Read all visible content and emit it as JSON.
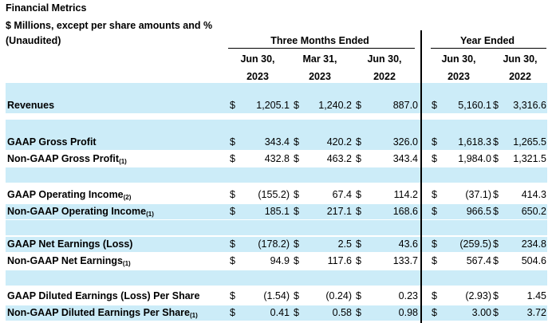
{
  "title": "Financial Metrics",
  "subtitle": "$ Millions, except per share amounts and %",
  "unaudited": "(Unaudited)",
  "groups": {
    "three_months": "Three Months Ended",
    "year": "Year Ended"
  },
  "columns": [
    {
      "month": "Jun 30,",
      "year": "2023"
    },
    {
      "month": "Mar 31,",
      "year": "2023"
    },
    {
      "month": "Jun 30,",
      "year": "2022"
    },
    {
      "month": "Jun 30,",
      "year": "2023"
    },
    {
      "month": "Jun 30,",
      "year": "2022"
    }
  ],
  "currency": "$",
  "footnote_1": "(1)",
  "footnote_2": "(2)",
  "rows": [
    {
      "label": "Revenues",
      "values": [
        "1,205.1",
        "1,240.2",
        "887.0",
        "5,160.1",
        "3,316.6"
      ]
    },
    {
      "label": "GAAP Gross Profit",
      "values": [
        "343.4",
        "420.2",
        "326.0",
        "1,618.3",
        "1,265.5"
      ]
    },
    {
      "label": "Non-GAAP Gross Profit",
      "values": [
        "432.8",
        "463.2",
        "343.4",
        "1,984.0",
        "1,321.5"
      ]
    },
    {
      "label": "GAAP Operating Income",
      "values": [
        "(155.2)",
        "67.4",
        "114.2",
        "(37.1)",
        "414.3"
      ]
    },
    {
      "label": "Non-GAAP Operating Income",
      "values": [
        "185.1",
        "217.1",
        "168.6",
        "966.5",
        "650.2"
      ]
    },
    {
      "label": "GAAP Net Earnings (Loss)",
      "values": [
        "(178.2)",
        "2.5",
        "43.6",
        "(259.5)",
        "234.8"
      ]
    },
    {
      "label": "Non-GAAP Net Earnings",
      "values": [
        "94.9",
        "117.6",
        "133.7",
        "567.4",
        "504.6"
      ]
    },
    {
      "label": "GAAP Diluted Earnings (Loss) Per Share",
      "values": [
        "(1.54)",
        "(0.24)",
        "0.23",
        "(2.93)",
        "1.45"
      ]
    },
    {
      "label": "Non-GAAP Diluted Earnings Per Share",
      "values": [
        "0.41",
        "0.58",
        "0.98",
        "3.00",
        "3.72"
      ]
    }
  ]
}
